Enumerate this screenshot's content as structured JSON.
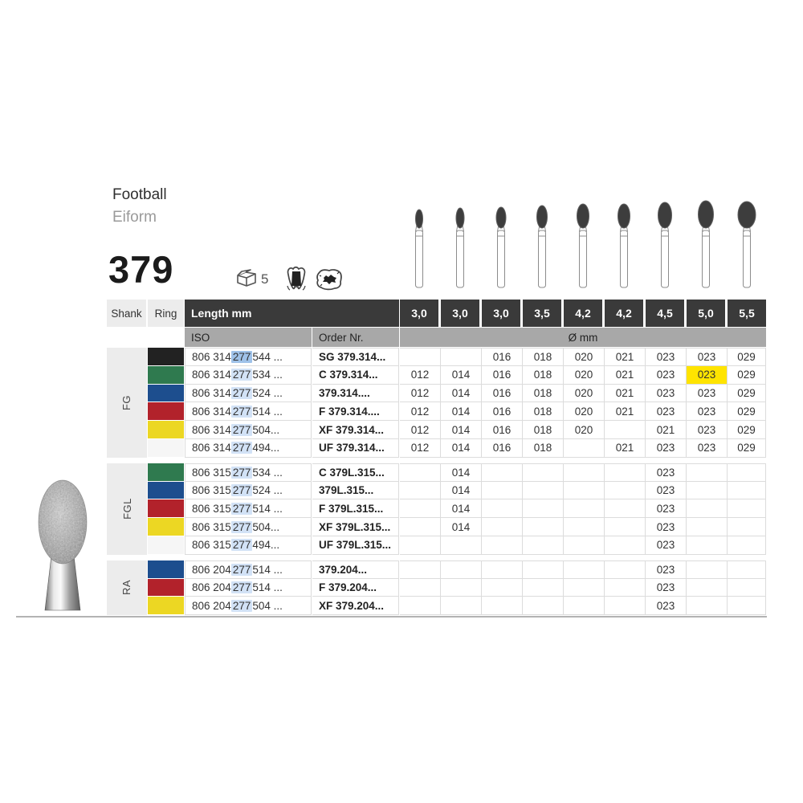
{
  "page": {
    "title": "Football",
    "subtitle": "Eiform",
    "figure_number": "379",
    "pack_quantity": "5"
  },
  "icons": {
    "package": "package-icon",
    "tooth_inlay": "tooth-inlay-icon",
    "occlusal_caries": "occlusal-caries-icon"
  },
  "colors": {
    "header_dark": "#3a3a3a",
    "subheader_gray": "#a8a8a8",
    "group_gray": "#ececec",
    "grid_line": "#dcdcdc",
    "iso_highlight": "#d2e2f6",
    "iso_highlight_dark": "#9fc2e9",
    "cell_highlight_yellow": "#ffe400",
    "ring_black": "#222222",
    "ring_green": "#2f7a4f",
    "ring_blue": "#1d4e8e",
    "ring_red": "#b2222b",
    "ring_yellow": "#ecd723",
    "ring_none": "#f6f6f6"
  },
  "table": {
    "headers": {
      "shank": "Shank",
      "ring": "Ring",
      "length": "Length mm",
      "iso": "ISO",
      "order": "Order Nr.",
      "diameter": "Ø mm"
    },
    "lengths": [
      "3,0",
      "3,0",
      "3,0",
      "3,5",
      "4,2",
      "4,2",
      "4,5",
      "5,0",
      "5,5"
    ],
    "groups": [
      {
        "shank": "FG",
        "rows": [
          {
            "ring": "black",
            "ring_hex": "#222222",
            "iso_pre": "806 314 ",
            "iso_hl": "277",
            "iso_post": " 544 ...",
            "hl_style": "dark",
            "order": "SG 379.314...",
            "values": [
              "",
              "",
              "016",
              "018",
              "020",
              "021",
              "023",
              "023",
              "029"
            ],
            "yellow_col": -1
          },
          {
            "ring": "green",
            "ring_hex": "#2f7a4f",
            "iso_pre": "806 314 ",
            "iso_hl": "277",
            "iso_post": " 534 ...",
            "hl_style": "light",
            "order": "C 379.314...",
            "values": [
              "012",
              "014",
              "016",
              "018",
              "020",
              "021",
              "023",
              "023",
              "029"
            ],
            "yellow_col": 7
          },
          {
            "ring": "blue",
            "ring_hex": "#1d4e8e",
            "iso_pre": "806 314 ",
            "iso_hl": "277",
            "iso_post": " 524 ...",
            "hl_style": "light",
            "order": "379.314....",
            "values": [
              "012",
              "014",
              "016",
              "018",
              "020",
              "021",
              "023",
              "023",
              "029"
            ],
            "yellow_col": -1
          },
          {
            "ring": "red",
            "ring_hex": "#b2222b",
            "iso_pre": "806 314 ",
            "iso_hl": "277",
            "iso_post": " 514 ...",
            "hl_style": "light",
            "order": "F 379.314....",
            "values": [
              "012",
              "014",
              "016",
              "018",
              "020",
              "021",
              "023",
              "023",
              "029"
            ],
            "yellow_col": -1
          },
          {
            "ring": "yellow",
            "ring_hex": "#ecd723",
            "iso_pre": "806 314 ",
            "iso_hl": "277",
            "iso_post": " 504...",
            "hl_style": "light",
            "order": "XF 379.314...",
            "values": [
              "012",
              "014",
              "016",
              "018",
              "020",
              "",
              "021",
              "023",
              "029"
            ],
            "yellow_col": -1
          },
          {
            "ring": "none",
            "ring_hex": "#f6f6f6",
            "iso_pre": "806 314 ",
            "iso_hl": "277",
            "iso_post": " 494...",
            "hl_style": "light",
            "order": "UF 379.314...",
            "values": [
              "012",
              "014",
              "016",
              "018",
              "",
              "021",
              "023",
              "023",
              "029"
            ],
            "yellow_col": -1
          }
        ]
      },
      {
        "shank": "FGL",
        "rows": [
          {
            "ring": "green",
            "ring_hex": "#2f7a4f",
            "iso_pre": "806 315 ",
            "iso_hl": "277",
            "iso_post": " 534 ...",
            "hl_style": "light",
            "order": "C 379L.315...",
            "values": [
              "",
              "014",
              "",
              "",
              "",
              "",
              "023",
              "",
              ""
            ],
            "yellow_col": -1
          },
          {
            "ring": "blue",
            "ring_hex": "#1d4e8e",
            "iso_pre": "806 315 ",
            "iso_hl": "277",
            "iso_post": " 524 ...",
            "hl_style": "light",
            "order": "379L.315...",
            "values": [
              "",
              "014",
              "",
              "",
              "",
              "",
              "023",
              "",
              ""
            ],
            "yellow_col": -1
          },
          {
            "ring": "red",
            "ring_hex": "#b2222b",
            "iso_pre": "806 315 ",
            "iso_hl": "277",
            "iso_post": " 514 ...",
            "hl_style": "light",
            "order": "F 379L.315...",
            "values": [
              "",
              "014",
              "",
              "",
              "",
              "",
              "023",
              "",
              ""
            ],
            "yellow_col": -1
          },
          {
            "ring": "yellow",
            "ring_hex": "#ecd723",
            "iso_pre": "806 315 ",
            "iso_hl": "277",
            "iso_post": " 504...",
            "hl_style": "light",
            "order": "XF 379L.315...",
            "values": [
              "",
              "014",
              "",
              "",
              "",
              "",
              "023",
              "",
              ""
            ],
            "yellow_col": -1
          },
          {
            "ring": "none",
            "ring_hex": "#f6f6f6",
            "iso_pre": "806 315 ",
            "iso_hl": "277",
            "iso_post": " 494...",
            "hl_style": "light",
            "order": "UF 379L.315...",
            "values": [
              "",
              "",
              "",
              "",
              "",
              "",
              "023",
              "",
              ""
            ],
            "yellow_col": -1
          }
        ]
      },
      {
        "shank": "RA",
        "rows": [
          {
            "ring": "blue",
            "ring_hex": "#1d4e8e",
            "iso_pre": "806 204 ",
            "iso_hl": "277",
            "iso_post": " 514 ...",
            "hl_style": "light",
            "order": "379.204...",
            "values": [
              "",
              "",
              "",
              "",
              "",
              "",
              "023",
              "",
              ""
            ],
            "yellow_col": -1
          },
          {
            "ring": "red",
            "ring_hex": "#b2222b",
            "iso_pre": "806 204 ",
            "iso_hl": "277",
            "iso_post": " 514 ...",
            "hl_style": "light",
            "order": "F 379.204...",
            "values": [
              "",
              "",
              "",
              "",
              "",
              "",
              "023",
              "",
              ""
            ],
            "yellow_col": -1
          },
          {
            "ring": "yellow",
            "ring_hex": "#ecd723",
            "iso_pre": "806 204 ",
            "iso_hl": "277",
            "iso_post": " 504 ...",
            "hl_style": "light",
            "order": "XF 379.204...",
            "values": [
              "",
              "",
              "",
              "",
              "",
              "",
              "023",
              "",
              ""
            ],
            "yellow_col": -1
          }
        ]
      }
    ]
  }
}
